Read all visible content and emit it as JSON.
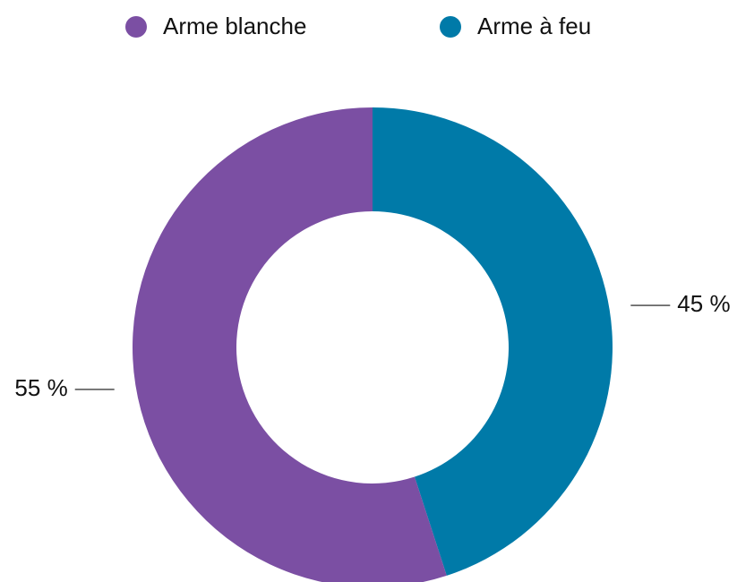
{
  "chart_data": {
    "type": "donut",
    "categories": [
      "Arme blanche",
      "Arme à feu"
    ],
    "values": [
      55,
      45
    ],
    "value_labels": [
      "55 %",
      "45 %"
    ],
    "colors": [
      "#7b4fa3",
      "#007aa8"
    ],
    "legend": "top"
  }
}
